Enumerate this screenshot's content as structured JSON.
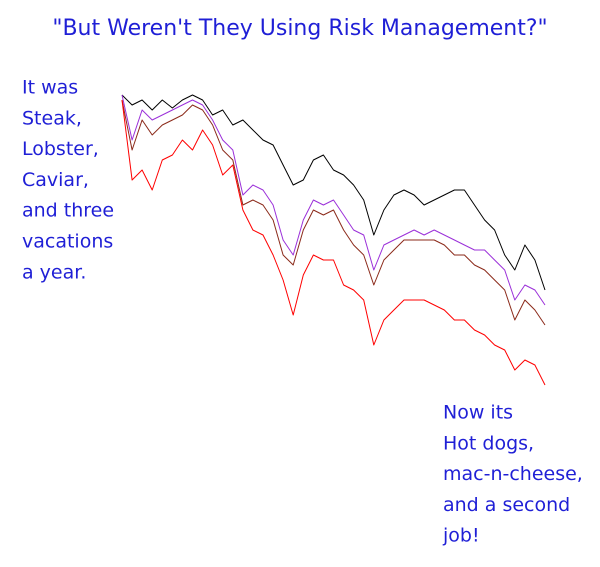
{
  "chart_data": {
    "type": "line",
    "title": "\"But Weren't They Using Risk Management?\"",
    "annotations": [
      {
        "lines": [
          "It was",
          "Steak,",
          "Lobster,",
          "Caviar,",
          "and three",
          "vacations",
          "a year."
        ]
      },
      {
        "lines": [
          "Now its",
          "Hot dogs,",
          "mac-n-cheese,",
          "and a second",
          "job!"
        ]
      }
    ],
    "series": [
      {
        "color": "#000000",
        "values": [
          305,
          295,
          300,
          290,
          300,
          292,
          300,
          305,
          300,
          285,
          290,
          275,
          280,
          270,
          260,
          255,
          235,
          215,
          220,
          240,
          245,
          230,
          225,
          215,
          200,
          165,
          190,
          205,
          210,
          205,
          195,
          200,
          205,
          210,
          210,
          195,
          180,
          170,
          145,
          130,
          155,
          140,
          110
        ]
      },
      {
        "color": "#9b30d9",
        "values": [
          305,
          260,
          290,
          280,
          285,
          290,
          295,
          300,
          295,
          280,
          260,
          250,
          205,
          215,
          210,
          195,
          160,
          145,
          180,
          200,
          195,
          200,
          185,
          170,
          165,
          130,
          155,
          160,
          165,
          170,
          165,
          170,
          165,
          160,
          155,
          150,
          150,
          140,
          130,
          100,
          115,
          110,
          95
        ]
      },
      {
        "color": "#8b2a1a",
        "values": [
          300,
          250,
          280,
          265,
          275,
          280,
          285,
          295,
          290,
          275,
          250,
          240,
          195,
          200,
          195,
          180,
          145,
          135,
          170,
          190,
          185,
          190,
          170,
          155,
          145,
          115,
          140,
          150,
          160,
          160,
          160,
          160,
          155,
          145,
          145,
          135,
          130,
          120,
          110,
          80,
          100,
          90,
          75
        ]
      },
      {
        "color": "#ff0000",
        "values": [
          300,
          220,
          230,
          210,
          240,
          245,
          260,
          250,
          270,
          255,
          225,
          235,
          190,
          170,
          165,
          145,
          120,
          85,
          125,
          145,
          140,
          140,
          115,
          110,
          100,
          55,
          80,
          90,
          100,
          100,
          100,
          95,
          90,
          80,
          80,
          70,
          65,
          55,
          50,
          30,
          40,
          35,
          15
        ]
      }
    ]
  }
}
